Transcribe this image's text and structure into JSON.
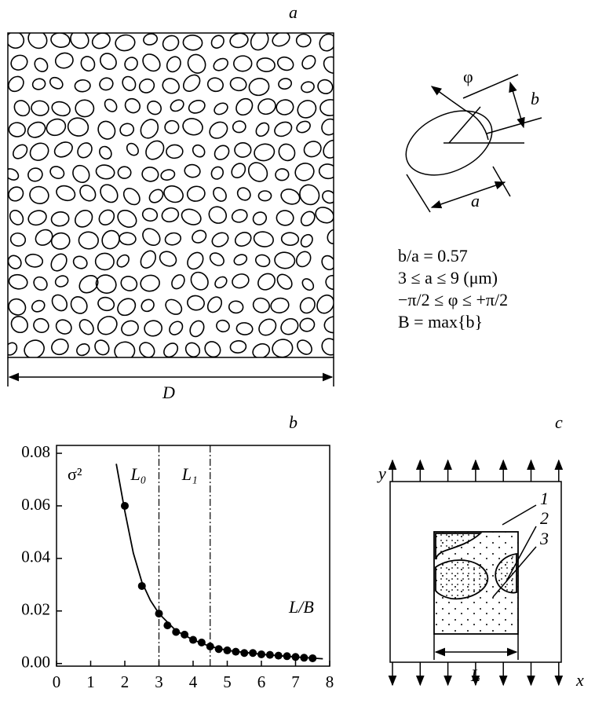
{
  "panel_a": {
    "label": "a",
    "dimension": "D"
  },
  "ellipse_diagram": {
    "phi": "φ",
    "minor": "b",
    "major": "a",
    "params": [
      "b/a = 0.57",
      "3 ≤ a ≤ 9 (μm)",
      "−π/2 ≤ φ ≤ +π/2",
      "B = max{b}"
    ]
  },
  "chart_data": {
    "type": "scatter",
    "label": "b",
    "y_label": "σ²",
    "x_label": "L/B",
    "x": [
      2,
      2.5,
      3,
      3.25,
      3.5,
      3.75,
      4,
      4.25,
      4.5,
      4.75,
      5,
      5.25,
      5.5,
      5.75,
      6,
      6.25,
      6.5,
      6.75,
      7,
      7.25,
      7.5
    ],
    "values": [
      0.06,
      0.0295,
      0.019,
      0.0145,
      0.012,
      0.011,
      0.009,
      0.008,
      0.0065,
      0.0055,
      0.005,
      0.0045,
      0.004,
      0.004,
      0.0035,
      0.0033,
      0.003,
      0.0028,
      0.0025,
      0.0022,
      0.002
    ],
    "fit_x": [
      1.75,
      2,
      2.25,
      2.5,
      2.75,
      3,
      3.5,
      4,
      4.5,
      5,
      6,
      7,
      7.8
    ],
    "fit_values": [
      0.076,
      0.058,
      0.042,
      0.031,
      0.024,
      0.019,
      0.0125,
      0.009,
      0.0065,
      0.005,
      0.0035,
      0.0025,
      0.0018
    ],
    "vlines": [
      {
        "value": 3,
        "label": "L₀"
      },
      {
        "value": 4.5,
        "label": "L₁"
      }
    ],
    "color": "#000000",
    "xlim": [
      0,
      8
    ],
    "ylim": [
      -0.001,
      0.083
    ],
    "xticks": [
      0,
      1,
      2,
      3,
      4,
      5,
      6,
      7,
      8
    ],
    "yticks": [
      {
        "value": 0,
        "label": "0.00"
      },
      {
        "value": 0.02,
        "label": "0.02"
      },
      {
        "value": 0.04,
        "label": "0.04"
      },
      {
        "value": 0.06,
        "label": "0.06"
      },
      {
        "value": 0.08,
        "label": "0.08"
      }
    ]
  },
  "panel_c": {
    "label": "c",
    "y_axis": "y",
    "x_axis": "x",
    "regions": [
      "1",
      "2",
      "3"
    ],
    "size": "L"
  }
}
